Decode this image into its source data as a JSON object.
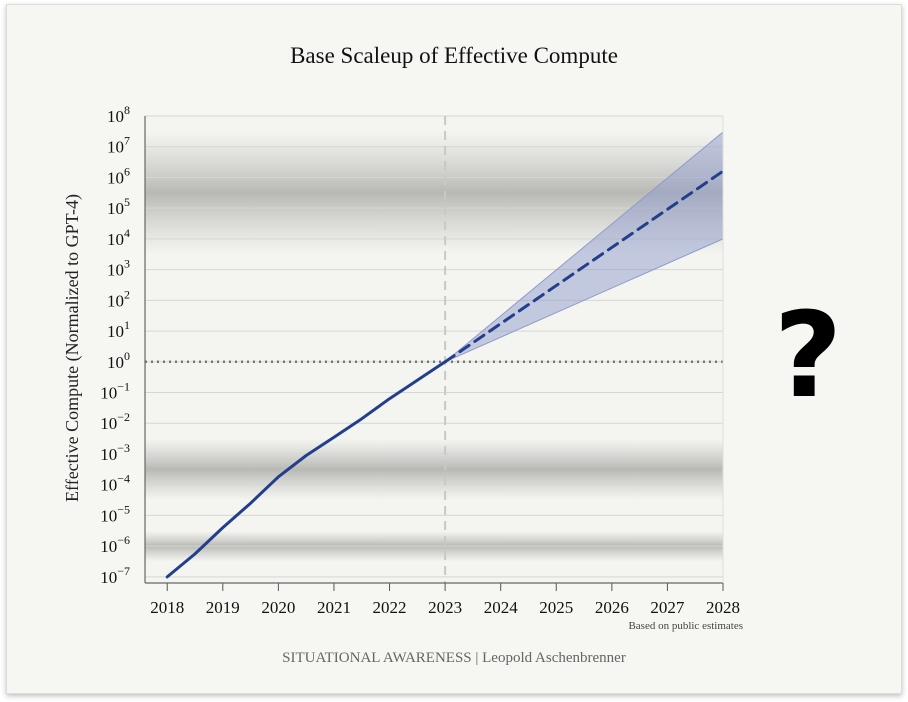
{
  "chart_data": {
    "type": "line",
    "title": "Base Scaleup of Effective Compute",
    "ylabel": "Effective Compute (Normalized to GPT-4)",
    "xlabel": "",
    "x_ticks": [
      "2018",
      "2019",
      "2020",
      "2021",
      "2022",
      "2023",
      "2024",
      "2025",
      "2026",
      "2027",
      "2028"
    ],
    "y_scale": "log",
    "y_tick_exponents": [
      -7,
      -6,
      -5,
      -4,
      -3,
      -2,
      -1,
      0,
      1,
      2,
      3,
      4,
      5,
      6,
      7,
      8
    ],
    "xlim": [
      2017.6,
      2028
    ],
    "ylim": [
      1e-07,
      100000000.0
    ],
    "grid": true,
    "series": [
      {
        "style": "solid",
        "color": "#233f8c",
        "x": [
          2018,
          2018.5,
          2019,
          2019.5,
          2020,
          2020.5,
          2021,
          2021.5,
          2022,
          2022.5,
          2023
        ],
        "y": [
          1e-07,
          5.6e-07,
          4e-06,
          2.5e-05,
          0.00018,
          0.00089,
          0.0035,
          0.014,
          0.063,
          0.25,
          1
        ]
      },
      {
        "style": "dashed",
        "color": "#233f8c",
        "x": [
          2023,
          2028
        ],
        "y": [
          1,
          1600000.0
        ]
      }
    ],
    "band": {
      "color": "#8f9bcc",
      "x": [
        2023,
        2028
      ],
      "lower": [
        1,
        10000.0
      ],
      "upper": [
        1,
        30000000.0
      ]
    },
    "reference_lines": [
      {
        "axis": "y",
        "value": 1,
        "style": "dotted",
        "color": "#777777"
      },
      {
        "axis": "x",
        "value": 2023,
        "style": "dashed",
        "color": "#c8c8c8"
      }
    ],
    "background_bands_exponents": [
      [
        3.5,
        7.5
      ],
      [
        -4.5,
        -2.5
      ],
      [
        -6.5,
        -5.5
      ]
    ]
  },
  "note": "Based on public estimates",
  "footer": "SITUATIONAL AWARENESS | Leopold Aschenbrenner",
  "question_mark": "?"
}
